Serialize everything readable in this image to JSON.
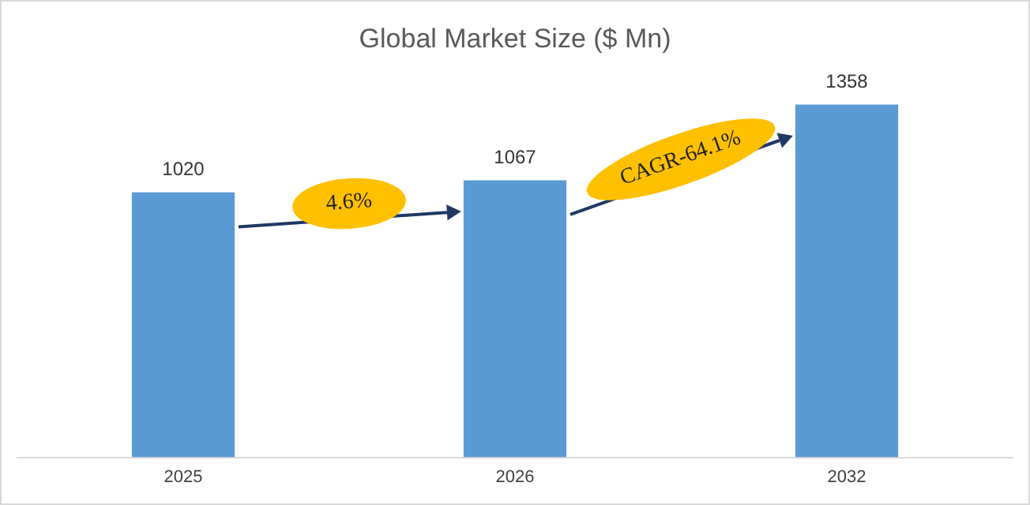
{
  "chart_data": {
    "type": "bar",
    "title": "Global Market Size ($ Mn)",
    "categories": [
      "2025",
      "2026",
      "2032"
    ],
    "values": [
      1020,
      1067,
      1358
    ],
    "color": "#5b9bd5",
    "data_labels": true,
    "grid": false,
    "legend": false,
    "annotations": [
      "4.6%",
      "CAGR-64.1%"
    ]
  }
}
